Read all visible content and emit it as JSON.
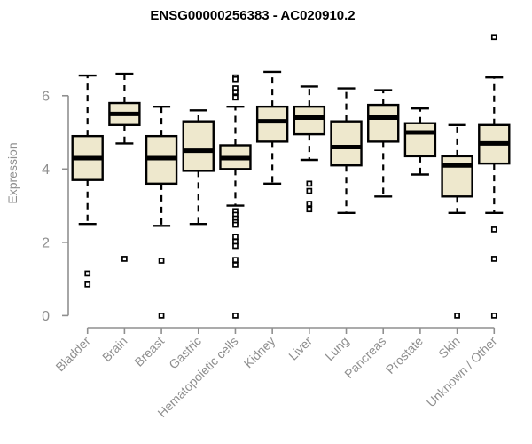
{
  "figure": {
    "title": "ENSG00000256383 - AC020910.2"
  },
  "chart_data": {
    "type": "boxplot",
    "title": "ENSG00000256383 - AC020910.2",
    "xlabel": "",
    "ylabel": "Expression",
    "ylim": [
      0,
      6
    ],
    "yticks": [
      0,
      2,
      4,
      6
    ],
    "grid": false,
    "legend_position": "none",
    "colors": {
      "box_fill": "#EEE8CD",
      "box_stroke": "#000000",
      "median": "#000000",
      "whisker": "#000000",
      "outlier_stroke": "#000000",
      "outlier_fill": "#FFFFFF",
      "axis": "#8F8F8F",
      "tick_text": "#8F8F8F",
      "title_text": "#000000"
    },
    "categories": [
      "Bladder",
      "Brain",
      "Breast",
      "Gastric",
      "Hematopoietic cells",
      "Kidney",
      "Liver",
      "Lung",
      "Pancreas",
      "Prostate",
      "Skin",
      "Unknown / Other"
    ],
    "series": [
      {
        "category": "Bladder",
        "low": 2.5,
        "q1": 3.7,
        "median": 4.3,
        "q3": 4.9,
        "high": 6.55,
        "outliers": [
          1.15,
          0.85
        ]
      },
      {
        "category": "Brain",
        "low": 4.7,
        "q1": 5.2,
        "median": 5.5,
        "q3": 5.8,
        "high": 6.6,
        "outliers": [
          1.55
        ]
      },
      {
        "category": "Breast",
        "low": 2.45,
        "q1": 3.6,
        "median": 4.3,
        "q3": 4.9,
        "high": 5.7,
        "outliers": [
          1.5,
          0.0
        ]
      },
      {
        "category": "Gastric",
        "low": 2.5,
        "q1": 3.95,
        "median": 4.5,
        "q3": 5.3,
        "high": 5.6,
        "outliers": []
      },
      {
        "category": "Hematopoietic cells",
        "low": 3.0,
        "q1": 4.0,
        "median": 4.3,
        "q3": 4.65,
        "high": 5.7,
        "outliers": [
          6.5,
          6.45,
          6.2,
          6.1,
          5.95,
          2.85,
          2.75,
          2.65,
          2.55,
          2.48,
          2.15,
          2.02,
          1.9,
          1.52,
          1.38,
          0.0
        ]
      },
      {
        "category": "Kidney",
        "low": 3.6,
        "q1": 4.75,
        "median": 5.3,
        "q3": 5.7,
        "high": 6.65,
        "outliers": []
      },
      {
        "category": "Liver",
        "low": 4.25,
        "q1": 4.95,
        "median": 5.4,
        "q3": 5.7,
        "high": 6.25,
        "outliers": [
          3.6,
          3.4,
          3.05,
          2.9
        ]
      },
      {
        "category": "Lung",
        "low": 2.8,
        "q1": 4.1,
        "median": 4.6,
        "q3": 5.3,
        "high": 6.2,
        "outliers": []
      },
      {
        "category": "Pancreas",
        "low": 3.25,
        "q1": 4.75,
        "median": 5.4,
        "q3": 5.75,
        "high": 6.15,
        "outliers": []
      },
      {
        "category": "Prostate",
        "low": 3.85,
        "q1": 4.35,
        "median": 5.0,
        "q3": 5.25,
        "high": 5.65,
        "outliers": []
      },
      {
        "category": "Skin",
        "low": 2.8,
        "q1": 3.25,
        "median": 4.1,
        "q3": 4.35,
        "high": 5.2,
        "outliers": [
          0.0
        ]
      },
      {
        "category": "Unknown / Other",
        "low": 2.8,
        "q1": 4.15,
        "median": 4.7,
        "q3": 5.2,
        "high": 6.5,
        "outliers": [
          7.6,
          2.35,
          1.55,
          0.0
        ]
      }
    ]
  }
}
